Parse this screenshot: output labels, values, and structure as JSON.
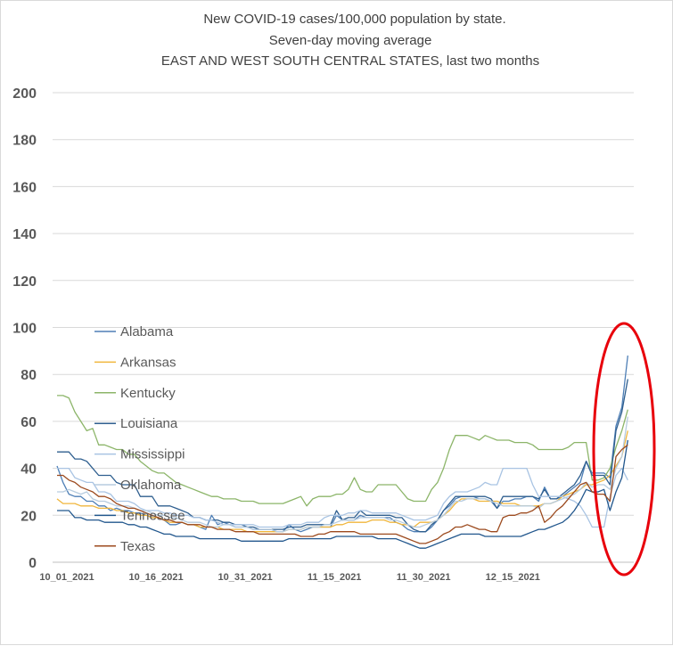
{
  "chart_data": {
    "type": "line",
    "title_lines": [
      "New COVID-19 cases/100,000 population by state.",
      "Seven-day moving average",
      "EAST AND WEST SOUTH CENTRAL STATES, last two months"
    ],
    "xlabel": "",
    "ylabel": "",
    "ylim": [
      0,
      200
    ],
    "yticks": [
      0,
      20,
      40,
      60,
      80,
      100,
      120,
      140,
      160,
      180,
      200
    ],
    "x_tick_labels": [
      {
        "index": 0,
        "label": "10_01_2021"
      },
      {
        "index": 15,
        "label": "10_16_2021"
      },
      {
        "index": 30,
        "label": "10_31_2021"
      },
      {
        "index": 45,
        "label": "11_15_2021"
      },
      {
        "index": 60,
        "label": "11_30_2021"
      },
      {
        "index": 75,
        "label": "12_15_2021"
      }
    ],
    "n_points": 97,
    "grid": "horizontal",
    "legend_position": "left-inside",
    "annotation": "red ellipse highlighting the final days",
    "annotation_color": "#e8000b",
    "series": [
      {
        "name": "Alabama",
        "color": "#4e7fb6",
        "values": [
          41,
          34,
          29,
          28,
          28,
          26,
          26,
          24,
          24,
          22,
          23,
          22,
          22,
          21,
          21,
          20,
          19,
          19,
          18,
          16,
          16,
          17,
          16,
          16,
          15,
          14,
          20,
          16,
          17,
          16,
          15,
          15,
          15,
          14,
          14,
          14,
          14,
          13,
          13,
          16,
          14,
          13,
          14,
          15,
          15,
          15,
          15,
          20,
          18,
          18,
          18,
          20,
          19,
          19,
          19,
          19,
          19,
          17,
          16,
          14,
          13,
          13,
          13,
          15,
          18,
          22,
          24,
          27,
          28,
          28,
          28,
          27,
          27,
          26,
          23,
          26,
          26,
          27,
          27,
          28,
          28,
          26,
          32,
          27,
          27,
          28,
          30,
          32,
          34,
          43,
          38,
          38,
          38,
          36,
          58,
          66,
          88
        ]
      },
      {
        "name": "Arkansas",
        "color": "#f0b63c",
        "values": [
          27,
          25,
          25,
          25,
          24,
          24,
          24,
          23,
          23,
          23,
          22,
          22,
          21,
          21,
          20,
          20,
          19,
          19,
          18,
          17,
          17,
          17,
          16,
          16,
          15,
          15,
          15,
          15,
          14,
          14,
          14,
          14,
          13,
          13,
          13,
          13,
          13,
          13,
          13,
          14,
          14,
          14,
          15,
          15,
          15,
          15,
          15,
          16,
          16,
          17,
          17,
          17,
          17,
          18,
          18,
          18,
          17,
          17,
          16,
          16,
          15,
          17,
          17,
          17,
          18,
          20,
          22,
          25,
          27,
          27,
          27,
          26,
          26,
          26,
          26,
          25,
          25,
          25,
          24,
          24,
          24,
          24,
          25,
          25,
          26,
          28,
          29,
          30,
          31,
          33,
          33,
          34,
          35,
          37,
          41,
          45,
          56
        ]
      },
      {
        "name": "Kentucky",
        "color": "#8cb569",
        "values": [
          71,
          71,
          70,
          64,
          60,
          56,
          57,
          50,
          50,
          49,
          48,
          48,
          46,
          46,
          43,
          41,
          39,
          38,
          38,
          36,
          34,
          33,
          32,
          31,
          30,
          29,
          28,
          28,
          27,
          27,
          27,
          26,
          26,
          26,
          25,
          25,
          25,
          25,
          25,
          26,
          27,
          28,
          24,
          27,
          28,
          28,
          28,
          29,
          29,
          31,
          36,
          31,
          30,
          30,
          33,
          33,
          33,
          33,
          30,
          27,
          26,
          26,
          26,
          31,
          34,
          40,
          48,
          54,
          54,
          54,
          53,
          52,
          54,
          53,
          52,
          52,
          52,
          51,
          51,
          51,
          50,
          48,
          48,
          48,
          48,
          48,
          49,
          51,
          51,
          51,
          35,
          35,
          36,
          40,
          49,
          56,
          65
        ]
      },
      {
        "name": "Louisiana",
        "color": "#2f5f8f",
        "values": [
          47,
          47,
          47,
          44,
          44,
          43,
          40,
          37,
          37,
          37,
          34,
          33,
          33,
          33,
          28,
          28,
          28,
          24,
          24,
          24,
          23,
          22,
          21,
          19,
          19,
          18,
          18,
          18,
          17,
          17,
          16,
          16,
          15,
          15,
          14,
          14,
          14,
          14,
          14,
          15,
          15,
          15,
          16,
          16,
          16,
          16,
          16,
          22,
          18,
          19,
          19,
          22,
          20,
          20,
          20,
          20,
          20,
          19,
          19,
          16,
          14,
          13,
          13,
          16,
          18,
          22,
          25,
          28,
          28,
          28,
          28,
          28,
          28,
          27,
          23,
          28,
          28,
          28,
          28,
          28,
          28,
          27,
          31,
          27,
          27,
          29,
          31,
          33,
          37,
          43,
          37,
          37,
          37,
          33,
          56,
          64,
          78
        ]
      },
      {
        "name": "Mississippi",
        "color": "#a9c4e3",
        "values": [
          40,
          40,
          40,
          36,
          35,
          34,
          34,
          30,
          30,
          29,
          26,
          26,
          26,
          25,
          23,
          22,
          22,
          22,
          21,
          21,
          20,
          20,
          20,
          19,
          19,
          18,
          18,
          17,
          16,
          16,
          16,
          16,
          16,
          16,
          15,
          15,
          15,
          15,
          15,
          16,
          16,
          16,
          17,
          17,
          17,
          19,
          20,
          20,
          20,
          21,
          21,
          22,
          22,
          21,
          21,
          21,
          21,
          21,
          20,
          19,
          18,
          18,
          18,
          19,
          20,
          25,
          28,
          30,
          30,
          30,
          31,
          32,
          34,
          33,
          33,
          40,
          40,
          40,
          40,
          40,
          33,
          28,
          28,
          28,
          28,
          28,
          27,
          26,
          24,
          20,
          15,
          15,
          15,
          28,
          37,
          40,
          35
        ]
      },
      {
        "name": "Oklahoma",
        "color": "#b7ccdf",
        "values": [
          30,
          30,
          31,
          30,
          29,
          30,
          27,
          26,
          26,
          25,
          24,
          24,
          24,
          23,
          22,
          22,
          21,
          20,
          20,
          19,
          19,
          18,
          17,
          17,
          17,
          16,
          15,
          15,
          16,
          16,
          15,
          15,
          15,
          14,
          14,
          14,
          14,
          13,
          13,
          14,
          14,
          14,
          15,
          15,
          15,
          16,
          16,
          17,
          18,
          18,
          18,
          19,
          19,
          19,
          19,
          19,
          18,
          18,
          17,
          16,
          15,
          15,
          16,
          17,
          18,
          20,
          23,
          26,
          26,
          27,
          27,
          27,
          27,
          26,
          25,
          24,
          24,
          24,
          24,
          24,
          24,
          23,
          25,
          25,
          26,
          27,
          28,
          29,
          31,
          34,
          32,
          33,
          33,
          31,
          40,
          45,
          62
        ]
      },
      {
        "name": "Tennessee",
        "color": "#22578d",
        "values": [
          22,
          22,
          22,
          19,
          19,
          18,
          18,
          18,
          17,
          17,
          17,
          17,
          16,
          16,
          15,
          15,
          14,
          13,
          12,
          12,
          11,
          11,
          11,
          11,
          10,
          10,
          10,
          10,
          10,
          10,
          10,
          9,
          9,
          9,
          9,
          9,
          9,
          9,
          9,
          10,
          10,
          10,
          10,
          10,
          10,
          10,
          10,
          11,
          11,
          11,
          11,
          11,
          11,
          11,
          10,
          10,
          10,
          10,
          9,
          8,
          7,
          6,
          6,
          7,
          8,
          9,
          10,
          11,
          12,
          12,
          12,
          12,
          11,
          11,
          11,
          11,
          11,
          11,
          11,
          12,
          13,
          14,
          14,
          15,
          16,
          17,
          19,
          22,
          26,
          31,
          30,
          30,
          31,
          22,
          30,
          36,
          52
        ]
      },
      {
        "name": "Texas",
        "color": "#9c4a1e",
        "values": [
          37,
          37,
          35,
          34,
          32,
          31,
          30,
          28,
          28,
          27,
          25,
          24,
          23,
          23,
          22,
          21,
          20,
          19,
          18,
          18,
          17,
          17,
          16,
          16,
          16,
          15,
          15,
          14,
          14,
          14,
          13,
          13,
          13,
          13,
          12,
          12,
          12,
          12,
          12,
          12,
          12,
          11,
          11,
          11,
          12,
          12,
          13,
          13,
          13,
          13,
          13,
          12,
          12,
          12,
          12,
          12,
          12,
          12,
          11,
          10,
          9,
          8,
          8,
          9,
          10,
          12,
          13,
          15,
          15,
          16,
          15,
          14,
          14,
          13,
          13,
          19,
          20,
          20,
          21,
          21,
          22,
          24,
          17,
          19,
          22,
          24,
          27,
          30,
          33,
          34,
          30,
          29,
          29,
          26,
          45,
          48,
          50
        ]
      }
    ]
  }
}
